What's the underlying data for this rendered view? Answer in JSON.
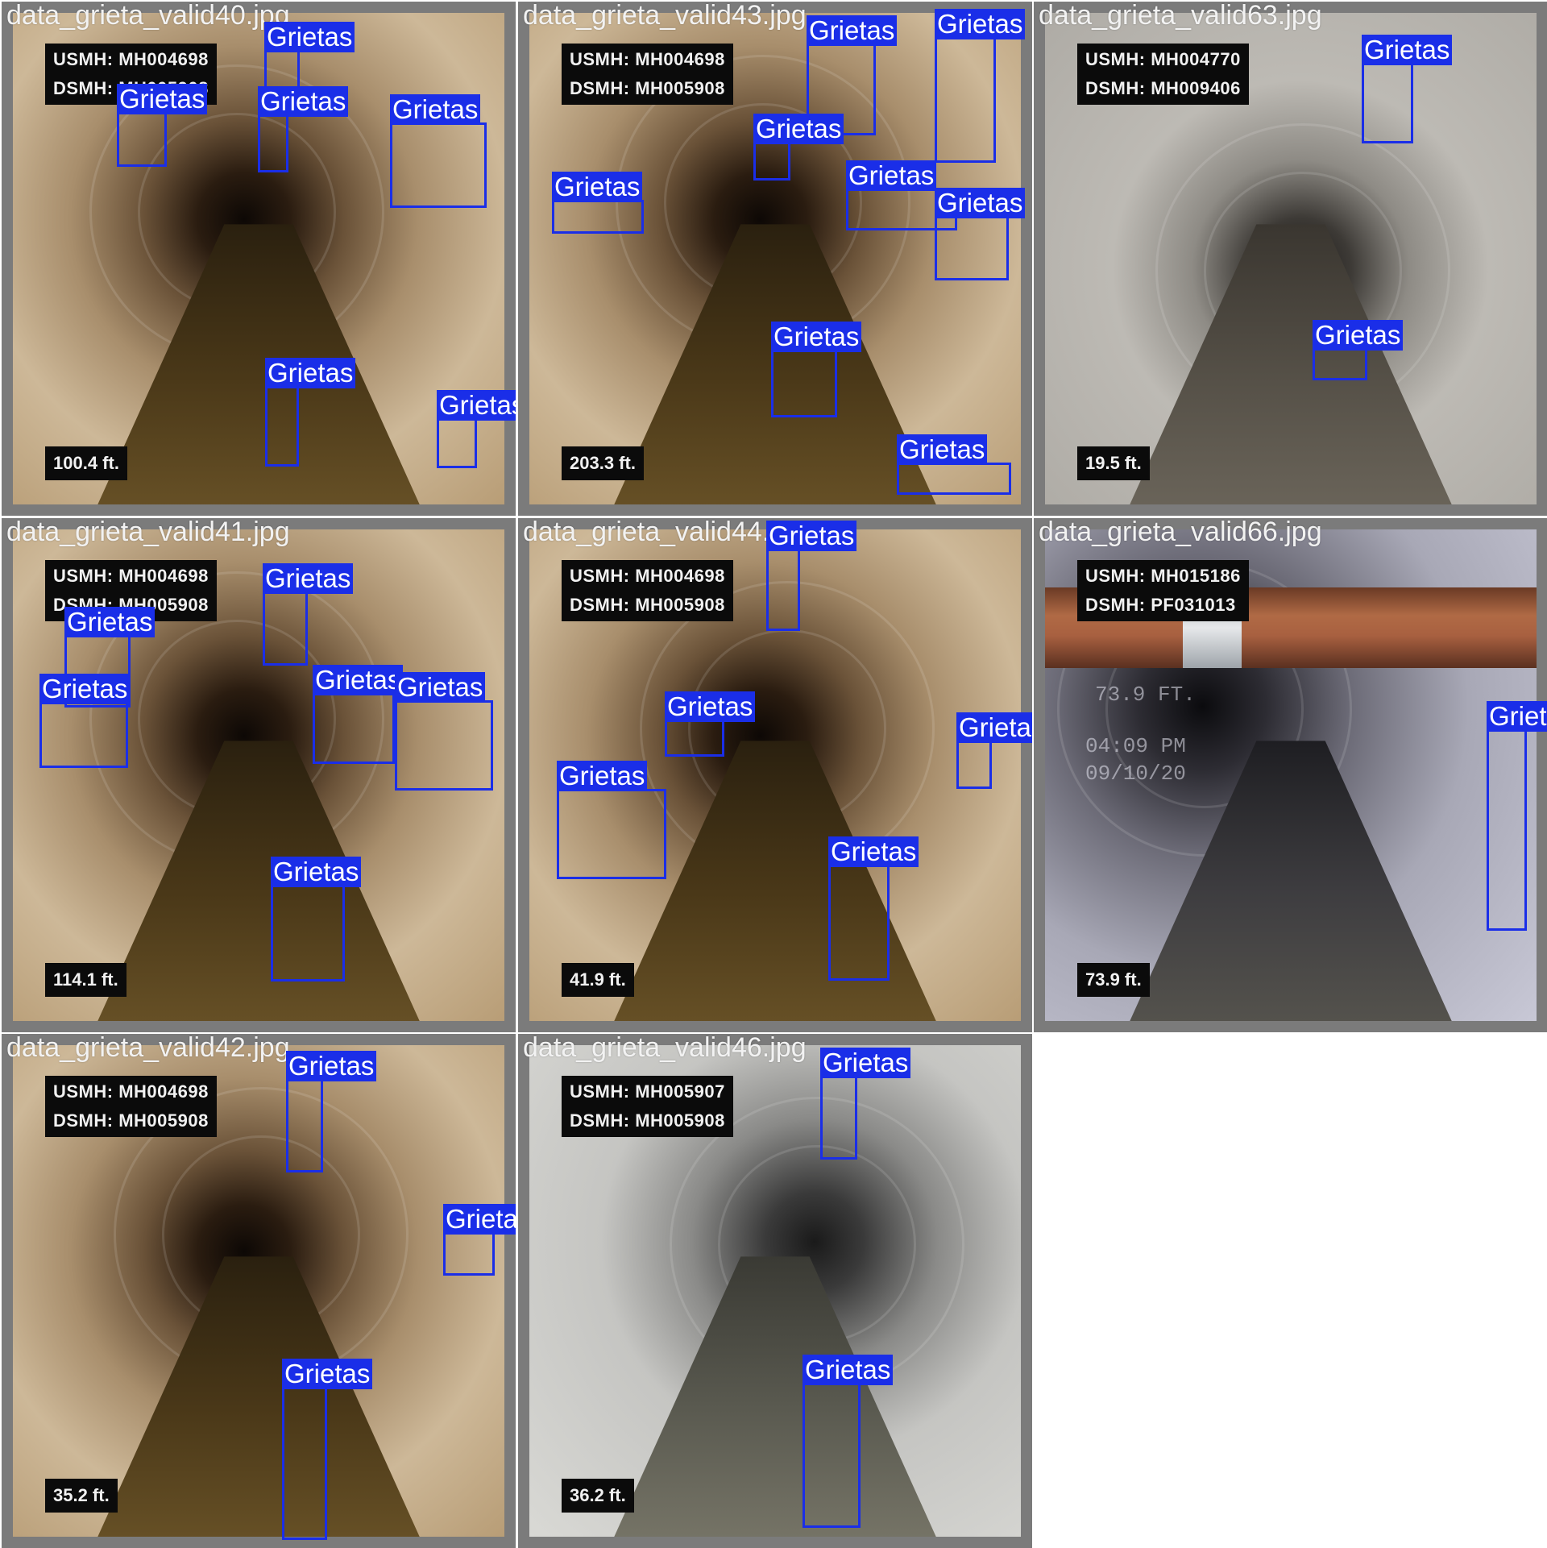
{
  "label_color": "#1a2ee8",
  "detections_label": "Grietas",
  "tiles": [
    {
      "filename": "data_grieta_valid40.jpg",
      "usmh": "USMH: MH004698",
      "dsmh": "DSMH: MH005908",
      "distance": "100.4 ft.",
      "tone": "warm-brown",
      "detections": [
        {
          "label": "Grietas"
        },
        {
          "label": "Grietas"
        },
        {
          "label": "Grietas"
        },
        {
          "label": "Grietas"
        },
        {
          "label": "Grietas"
        },
        {
          "label": "Grietas"
        }
      ]
    },
    {
      "filename": "data_grieta_valid43.jpg",
      "usmh": "USMH: MH004698",
      "dsmh": "DSMH: MH005908",
      "distance": "203.3 ft.",
      "tone": "warm-brown",
      "detections": [
        {
          "label": "Grietas"
        },
        {
          "label": "Grietas"
        },
        {
          "label": "Grietas"
        },
        {
          "label": "Grietas"
        },
        {
          "label": "Grietas"
        },
        {
          "label": "Grietas"
        },
        {
          "label": "Grietas"
        },
        {
          "label": "Grietas"
        }
      ]
    },
    {
      "filename": "data_grieta_valid63.jpg",
      "usmh": "USMH: MH004770",
      "dsmh": "DSMH: MH009406",
      "distance": "19.5 ft.",
      "tone": "grey",
      "detections": [
        {
          "label": "Grietas"
        },
        {
          "label": "Grietas"
        }
      ]
    },
    {
      "filename": "data_grieta_valid41.jpg",
      "usmh": "USMH: MH004698",
      "dsmh": "DSMH: MH005908",
      "distance": "114.1 ft.",
      "tone": "warm-brown",
      "detections": [
        {
          "label": "Grietas"
        },
        {
          "label": "Grietas"
        },
        {
          "label": "Grietas"
        },
        {
          "label": "Grietas"
        },
        {
          "label": "Grietas"
        },
        {
          "label": "Grietas"
        }
      ]
    },
    {
      "filename": "data_grieta_valid44.jpg",
      "usmh": "USMH: MH004698",
      "dsmh": "DSMH: MH005908",
      "distance": "41.9 ft.",
      "tone": "warm-brown",
      "detections": [
        {
          "label": "Grietas"
        },
        {
          "label": "Grietas"
        },
        {
          "label": "Grietas"
        },
        {
          "label": "Grietas"
        },
        {
          "label": "Grietas"
        }
      ]
    },
    {
      "filename": "data_grieta_valid66.jpg",
      "usmh": "USMH: MH015186",
      "dsmh": "DSMH: PF031013",
      "distance": "73.9 ft.",
      "tone": "cool-grey",
      "stamp_depth": "73.9 FT.",
      "stamp_time": "04:09 PM",
      "stamp_date": "09/10/20",
      "detections": [
        {
          "label": "Grietas"
        }
      ]
    },
    {
      "filename": "data_grieta_valid42.jpg",
      "usmh": "USMH: MH004698",
      "dsmh": "DSMH: MH005908",
      "distance": "35.2 ft.",
      "tone": "warm-brown",
      "detections": [
        {
          "label": "Grietas"
        },
        {
          "label": "Grietas"
        },
        {
          "label": "Grietas"
        }
      ]
    },
    {
      "filename": "data_grieta_valid46.jpg",
      "usmh": "USMH: MH005907",
      "dsmh": "DSMH: MH005908",
      "distance": "36.2 ft.",
      "tone": "light-grey",
      "detections": [
        {
          "label": "Grietas"
        },
        {
          "label": "Grietas"
        }
      ]
    }
  ]
}
